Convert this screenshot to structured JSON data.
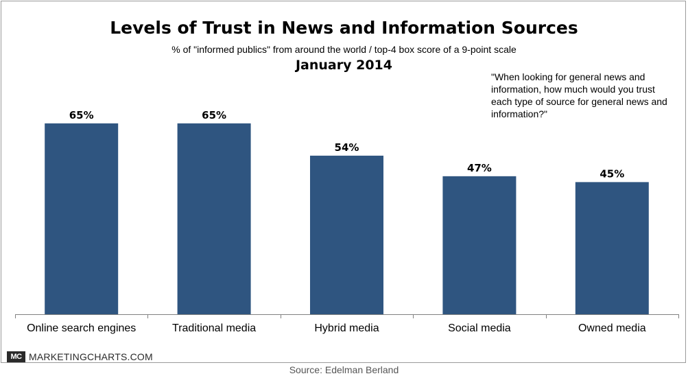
{
  "chart_data": {
    "type": "bar",
    "title": "Levels of Trust in News and Information Sources",
    "subtitle": "% of \"informed publics\" from around the world / top-4 box score of a 9-point scale",
    "date": "January 2014",
    "note": "\"When looking for general news and information, how much would you trust each type of source for general news and information?\"",
    "categories": [
      "Online search engines",
      "Traditional media",
      "Hybrid media",
      "Social media",
      "Owned media"
    ],
    "values": [
      65,
      65,
      54,
      47,
      45
    ],
    "value_labels": [
      "65%",
      "65%",
      "54%",
      "47%",
      "45%"
    ],
    "ylim": [
      0,
      100
    ],
    "grid": false,
    "bar_color": "#2f5580"
  },
  "branding": {
    "badge": "MC",
    "name": "MARKETINGCHARTS.COM"
  },
  "source": "Source: Edelman Berland"
}
